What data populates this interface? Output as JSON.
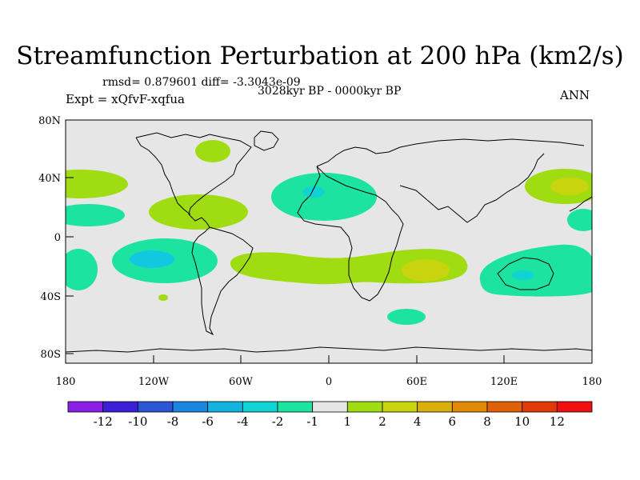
{
  "title": "Streamfunction Perturbation at 200 hPa (km2/s)",
  "stats": "rmsd= 0.879601 diff= -3.3043e-09",
  "period": "3028kyr BP - 0000kyr BP",
  "experiment": "Expt = xQfvF-xqfua",
  "season": "ANN",
  "axes": {
    "y_ticks": [
      "80N",
      "40N",
      "0",
      "40S",
      "80S"
    ],
    "x_ticks": [
      "180",
      "120W",
      "60W",
      "0",
      "60E",
      "120E",
      "180"
    ]
  },
  "colorbar": {
    "labels": [
      "-12",
      "-10",
      "-8",
      "-6",
      "-4",
      "-2",
      "-1",
      "1",
      "2",
      "4",
      "6",
      "8",
      "10",
      "12"
    ],
    "colors": [
      "#8a1fe6",
      "#3b1fd9",
      "#2a55d6",
      "#1a86e0",
      "#12b3e0",
      "#10d4d4",
      "#1de3a0",
      "#e6e6e6",
      "#9fdc12",
      "#c7d40e",
      "#d9b00a",
      "#e08a08",
      "#e06008",
      "#e23a06",
      "#f01010"
    ]
  },
  "colors": {
    "ocean": "#e6e6e6",
    "positive_light": "#9fdc12",
    "positive_mid": "#c7d40e",
    "negative_light": "#1de3a0",
    "negative_mid": "#10d4d4",
    "negative_strong": "#12c8e0"
  }
}
